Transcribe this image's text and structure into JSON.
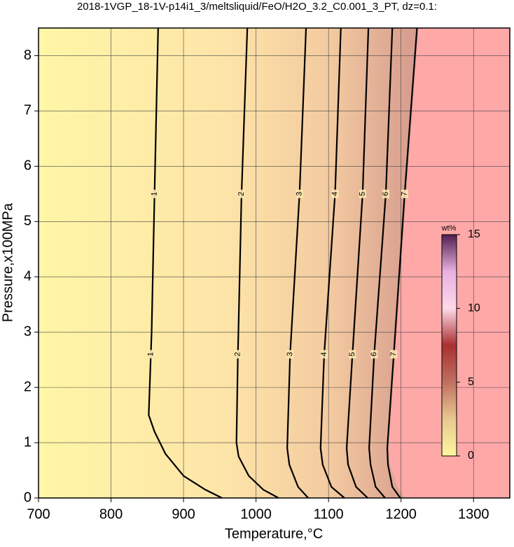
{
  "chart_data": {
    "type": "contour",
    "title": "2018-1VGP_18-1V-p14i1_3/meltsliquid/FeO/H2O_3.2_C0.001_3_PT, dz=0.1:",
    "x_label": "Temperature,°C",
    "y_label": "Pressure,x100MPa",
    "xlim": [
      700,
      1350
    ],
    "ylim": [
      0,
      8.5
    ],
    "xticks": [
      700,
      800,
      900,
      1000,
      1100,
      1200,
      1300
    ],
    "yticks": [
      0,
      1,
      2,
      3,
      4,
      5,
      6,
      7,
      8
    ],
    "grid": true,
    "label_pressures": [
      5.5,
      2.6
    ],
    "series": [
      {
        "name": "1",
        "color": "#000000",
        "x": [
          953,
          930,
          900,
          875,
          860,
          852,
          856,
          860,
          865
        ],
        "y": [
          0,
          0.15,
          0.4,
          0.8,
          1.2,
          1.5,
          3,
          5.5,
          8.5
        ]
      },
      {
        "name": "2",
        "color": "#000000",
        "x": [
          1031,
          1010,
          990,
          976,
          973,
          975,
          980,
          988
        ],
        "y": [
          0,
          0.15,
          0.4,
          0.75,
          1,
          2.6,
          5.5,
          8.5
        ]
      },
      {
        "name": "3",
        "color": "#000000",
        "x": [
          1072,
          1058,
          1046,
          1043,
          1047,
          1060,
          1069
        ],
        "y": [
          0,
          0.2,
          0.6,
          0.9,
          2.6,
          5.5,
          8.5
        ]
      },
      {
        "name": "4",
        "color": "#000000",
        "x": [
          1122,
          1104,
          1092,
          1089,
          1094,
          1109,
          1117
        ],
        "y": [
          0,
          0.2,
          0.6,
          0.9,
          2.6,
          5.5,
          8.5
        ]
      },
      {
        "name": "5",
        "color": "#000000",
        "x": [
          1154,
          1138,
          1127,
          1125,
          1133,
          1147,
          1155
        ],
        "y": [
          0,
          0.2,
          0.6,
          0.9,
          2.6,
          5.5,
          8.5
        ]
      },
      {
        "name": "6",
        "color": "#000000",
        "x": [
          1178,
          1165,
          1158,
          1156,
          1163,
          1179,
          1188
        ],
        "y": [
          0,
          0.2,
          0.6,
          0.9,
          2.6,
          5.5,
          8.5
        ]
      },
      {
        "name": "7",
        "color": "#000000",
        "x": [
          1199,
          1188,
          1182,
          1181,
          1190,
          1205,
          1222
        ],
        "y": [
          0,
          0.2,
          0.6,
          0.9,
          2.6,
          5.5,
          8.5
        ]
      }
    ],
    "boundary": {
      "x": [
        1205,
        1195,
        1185,
        1183,
        1192,
        1207,
        1224
      ],
      "y": [
        0,
        0.2,
        0.6,
        0.9,
        2.6,
        5.5,
        8.5
      ],
      "color": "#ffa8a8"
    },
    "colorbar": {
      "label": "wt%",
      "lim": [
        0,
        15
      ],
      "ticks": [
        0,
        5,
        10,
        15
      ],
      "colors": [
        "#fff7a0",
        "#e8c890",
        "#c07060",
        "#a83030",
        "#ffd8e8",
        "#e8b0e0",
        "#502050"
      ]
    }
  }
}
